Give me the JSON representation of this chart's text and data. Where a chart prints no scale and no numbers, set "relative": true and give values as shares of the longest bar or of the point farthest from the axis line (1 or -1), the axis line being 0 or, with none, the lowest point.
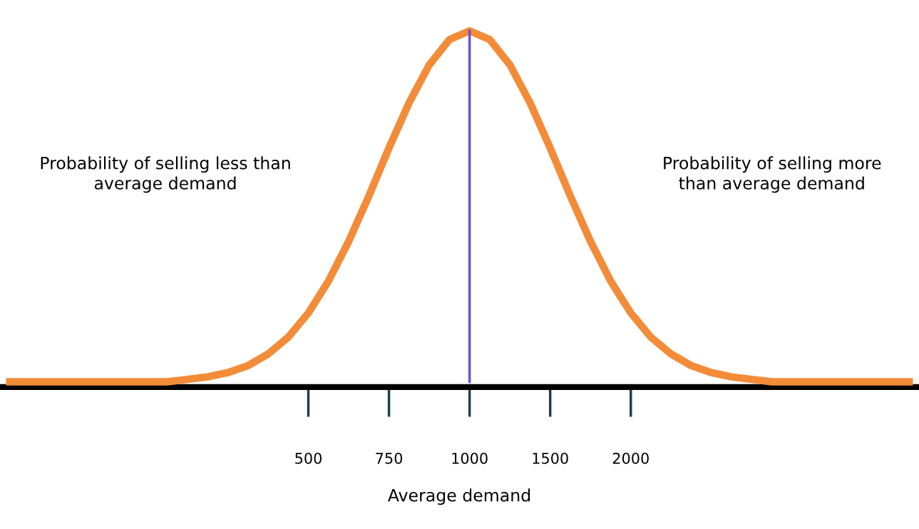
{
  "chart_data": {
    "type": "line",
    "relative": true,
    "xlabel": "Average demand",
    "categories": [
      null,
      null,
      null,
      null,
      null,
      null,
      null,
      null,
      null,
      null,
      null,
      null,
      null,
      null,
      null,
      "500",
      null,
      null,
      null,
      "750",
      null,
      null,
      null,
      "1000",
      null,
      null,
      null,
      "1500",
      null,
      null,
      null,
      "2000",
      null,
      null,
      null,
      null,
      null,
      null,
      null,
      null,
      null,
      null,
      null,
      null,
      null,
      null
    ],
    "series": [
      {
        "color": "#f28c38",
        "values": [
          0,
          0,
          0,
          0,
          0,
          0,
          0,
          0,
          0,
          0.007,
          0.014,
          0.026,
          0.046,
          0.079,
          0.127,
          0.196,
          0.287,
          0.4,
          0.529,
          0.666,
          0.795,
          0.903,
          0.975,
          1,
          0.975,
          0.903,
          0.795,
          0.666,
          0.529,
          0.4,
          0.287,
          0.196,
          0.127,
          0.079,
          0.046,
          0.026,
          0.014,
          0.007,
          0,
          0,
          0,
          0,
          0,
          0,
          0,
          0
        ]
      }
    ],
    "ref_lines": [
      {
        "axis": "x",
        "value": "1000",
        "color": "#6a4fe0"
      }
    ],
    "annotations": [
      "Probability of selling less than\naverage demand",
      "Probability of selling more\nthan average demand"
    ],
    "grid": false,
    "legend": false
  }
}
